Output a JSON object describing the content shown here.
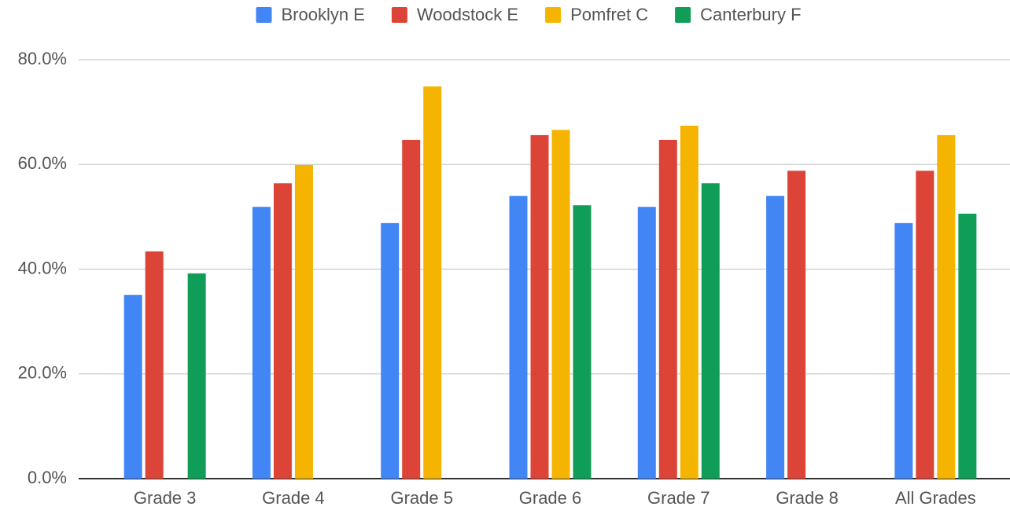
{
  "chart_data": {
    "type": "bar",
    "categories": [
      "Grade 3",
      "Grade 4",
      "Grade 5",
      "Grade 6",
      "Grade 7",
      "Grade 8",
      "All Grades"
    ],
    "series": [
      {
        "name": "Brooklyn E",
        "color": "#4285f4",
        "values": [
          35.1,
          51.9,
          48.8,
          54.0,
          51.9,
          54.0,
          48.8
        ]
      },
      {
        "name": "Woodstock E",
        "color": "#db4437",
        "values": [
          43.4,
          56.4,
          64.7,
          65.6,
          64.7,
          58.8,
          58.8
        ]
      },
      {
        "name": "Pomfret C",
        "color": "#f4b400",
        "values": [
          null,
          59.9,
          74.9,
          66.6,
          67.4,
          null,
          65.6
        ]
      },
      {
        "name": "Canterbury F",
        "color": "#0f9d58",
        "values": [
          39.2,
          null,
          null,
          52.2,
          56.4,
          null,
          50.6
        ]
      }
    ],
    "ylim": [
      0,
      80
    ],
    "yticks": [
      {
        "value": 0,
        "label": "0.0%"
      },
      {
        "value": 20,
        "label": "20.0%"
      },
      {
        "value": 40,
        "label": "40.0%"
      },
      {
        "value": 60,
        "label": "60.0%"
      },
      {
        "value": 80,
        "label": "80.0%"
      }
    ],
    "grid": true,
    "legend": "top"
  }
}
